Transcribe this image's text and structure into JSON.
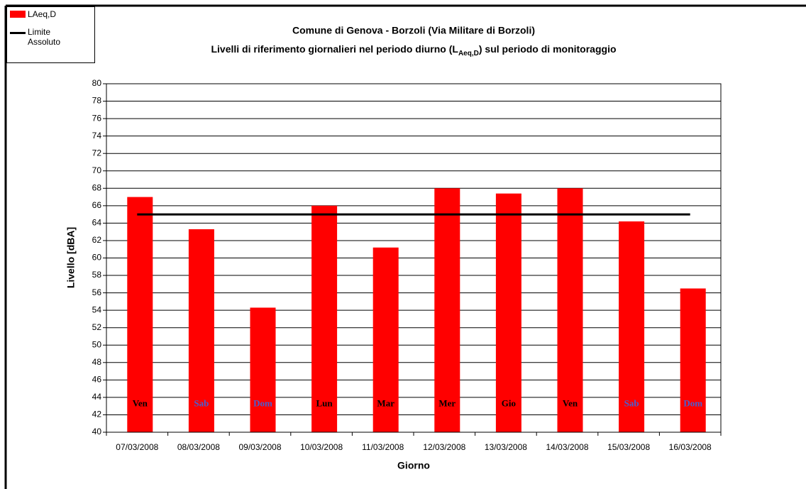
{
  "chart_data": {
    "type": "bar",
    "title": "Comune di Genova - Borzoli (Via Militare di Borzoli)",
    "subtitle_parts": [
      "Livelli di riferimento giornalieri nel periodo diurno (L",
      "Aeq,D",
      ") sul periodo di monitoraggio"
    ],
    "x_label": "Giorno",
    "y_label": "Livello [dBA]",
    "categories": [
      "07/03/2008",
      "08/03/2008",
      "09/03/2008",
      "10/03/2008",
      "11/03/2008",
      "12/03/2008",
      "13/03/2008",
      "14/03/2008",
      "15/03/2008",
      "16/03/2008"
    ],
    "day_labels": [
      "Ven",
      "Sab",
      "Dom",
      "Lun",
      "Mar",
      "Mer",
      "Gio",
      "Ven",
      "Sab",
      "Dom"
    ],
    "day_label_colors": [
      "#000000",
      "#4a5fd0",
      "#4a5fd0",
      "#000000",
      "#000000",
      "#000000",
      "#000000",
      "#000000",
      "#4a5fd0",
      "#4a5fd0"
    ],
    "series": [
      {
        "name": "LAeq,D",
        "type": "bar",
        "color": "#ff0000",
        "values": [
          67,
          63.3,
          54.3,
          66,
          61.2,
          68,
          67.4,
          68,
          64.2,
          56.5
        ]
      },
      {
        "name": "Limite Assoluto",
        "type": "line",
        "color": "#000000",
        "values": [
          65,
          65,
          65,
          65,
          65,
          65,
          65,
          65,
          65,
          65
        ]
      }
    ],
    "ylim": [
      40,
      80
    ],
    "yticks": [
      40,
      42,
      44,
      46,
      48,
      50,
      52,
      54,
      56,
      58,
      60,
      62,
      64,
      66,
      68,
      70,
      72,
      74,
      76,
      78,
      80
    ],
    "grid": true,
    "legend": "top-left"
  }
}
